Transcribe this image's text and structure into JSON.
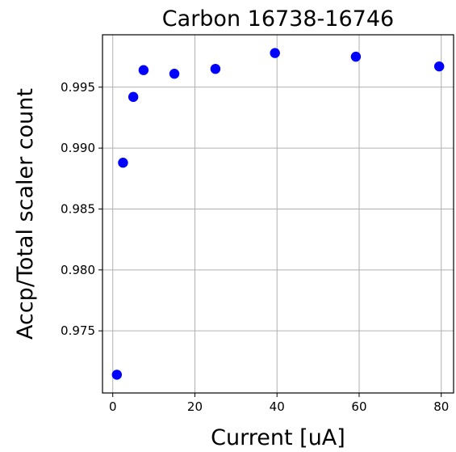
{
  "chart_data": {
    "type": "scatter",
    "title": "Carbon 16738-16746",
    "xlabel": "Current [uA]",
    "ylabel": "Accp/Total scaler count",
    "xlim": [
      -2.5,
      83
    ],
    "ylim": [
      0.9699,
      0.9993
    ],
    "xticks": [
      0,
      20,
      40,
      60,
      80
    ],
    "xtick_labels": [
      "0",
      "20",
      "40",
      "60",
      "80"
    ],
    "yticks": [
      0.975,
      0.98,
      0.985,
      0.99,
      0.995
    ],
    "ytick_labels": [
      "0.975",
      "0.980",
      "0.985",
      "0.990",
      "0.995"
    ],
    "grid": true,
    "marker_color": "#0000ff",
    "series": [
      {
        "x": [
          1.0,
          2.5,
          5.0,
          7.5,
          15.0,
          25.0,
          39.5,
          59.2,
          79.5
        ],
        "y": [
          0.9714,
          0.9888,
          0.9942,
          0.9964,
          0.9961,
          0.9965,
          0.9978,
          0.9975,
          0.9967
        ]
      }
    ]
  }
}
